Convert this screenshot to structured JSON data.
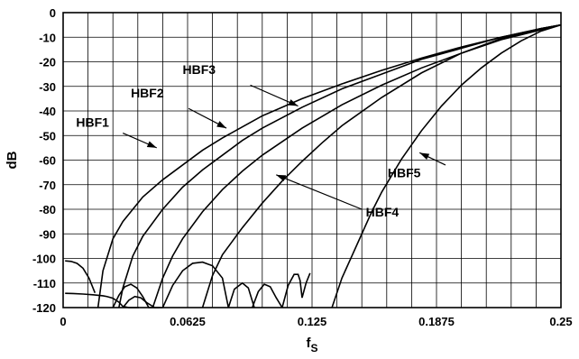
{
  "chart_data": {
    "type": "line",
    "title": "",
    "xlabel": "f",
    "xlabel_sub": "S",
    "ylabel": "dB",
    "xlim": [
      0,
      0.25
    ],
    "ylim": [
      -120,
      0
    ],
    "xticks": [
      0,
      0.0625,
      0.125,
      0.1875,
      0.25
    ],
    "xtick_labels": [
      "0",
      "0.0625",
      "0.125",
      "0.1875",
      "0.25"
    ],
    "yticks": [
      0,
      -10,
      -20,
      -30,
      -40,
      -50,
      -60,
      -70,
      -80,
      -90,
      -100,
      -110,
      -120
    ],
    "ytick_labels": [
      "0",
      "-10",
      "-20",
      "-30",
      "-40",
      "-50",
      "-60",
      "-70",
      "-80",
      "-90",
      "-100",
      "-110",
      "-120"
    ],
    "grid": true,
    "series": [
      {
        "name": "HBF1",
        "x": [
          0.0175,
          0.02,
          0.025,
          0.03,
          0.04,
          0.05,
          0.06,
          0.07,
          0.08,
          0.09,
          0.1,
          0.12,
          0.14,
          0.16,
          0.18,
          0.2,
          0.22,
          0.24,
          0.25
        ],
        "y": [
          -120,
          -105,
          -92,
          -85,
          -75,
          -68,
          -62,
          -56,
          -51,
          -46.5,
          -42,
          -35,
          -29,
          -23.5,
          -18.5,
          -14,
          -10,
          -6.5,
          -5
        ]
      },
      {
        "name": "HBF2",
        "x": [
          0.028,
          0.03,
          0.035,
          0.04,
          0.05,
          0.06,
          0.07,
          0.08,
          0.09,
          0.1,
          0.12,
          0.14,
          0.16,
          0.18,
          0.2,
          0.22,
          0.24,
          0.25
        ],
        "y": [
          -120,
          -112,
          -99,
          -91,
          -80,
          -71,
          -64,
          -58,
          -52,
          -47,
          -38.5,
          -31,
          -25,
          -19,
          -14.5,
          -10,
          -6.5,
          -5
        ]
      },
      {
        "name": "HBF3",
        "x": [
          0.045,
          0.05,
          0.055,
          0.06,
          0.07,
          0.08,
          0.09,
          0.1,
          0.12,
          0.14,
          0.16,
          0.18,
          0.2,
          0.22,
          0.24,
          0.25
        ],
        "y": [
          -120,
          -108,
          -99,
          -92,
          -81,
          -72,
          -64.5,
          -58,
          -47,
          -37.5,
          -29.5,
          -22.5,
          -16.5,
          -11,
          -7,
          -5
        ]
      },
      {
        "name": "HBF4",
        "x": [
          0.07,
          0.075,
          0.08,
          0.09,
          0.1,
          0.11,
          0.12,
          0.13,
          0.14,
          0.16,
          0.18,
          0.2,
          0.22,
          0.24,
          0.25
        ],
        "y": [
          -120,
          -107,
          -98.5,
          -87.5,
          -77.5,
          -68.5,
          -60.5,
          -53,
          -46,
          -34.5,
          -24.5,
          -16.5,
          -10.5,
          -6.5,
          -5
        ]
      },
      {
        "name": "HBF5",
        "x": [
          0.135,
          0.14,
          0.145,
          0.15,
          0.155,
          0.16,
          0.17,
          0.18,
          0.19,
          0.2,
          0.21,
          0.22,
          0.23,
          0.24,
          0.25
        ],
        "y": [
          -120,
          -108,
          -99,
          -90,
          -81,
          -73,
          -59.5,
          -48,
          -38,
          -29.5,
          -22.5,
          -16.5,
          -11.5,
          -7.5,
          -5
        ]
      },
      {
        "name": "",
        "x": [
          0.001,
          0.004,
          0.007,
          0.01,
          0.013,
          0.016
        ],
        "y": [
          -101,
          -101.2,
          -102,
          -104,
          -108,
          -114
        ]
      },
      {
        "name": "",
        "x": [
          0.001,
          0.005,
          0.01,
          0.015,
          0.02,
          0.022,
          0.025,
          0.028,
          0.03,
          0.033,
          0.036,
          0.038
        ],
        "y": [
          -114.2,
          -114.3,
          -114.5,
          -114.8,
          -115.2,
          -115.5,
          -116.2,
          -117.8,
          -119.5,
          -120,
          -120,
          -120
        ]
      },
      {
        "name": "",
        "x": [
          0.025,
          0.028,
          0.031,
          0.034,
          0.037,
          0.04,
          0.043,
          0.046,
          0.048
        ],
        "y": [
          -120,
          -115,
          -111.5,
          -110.5,
          -112,
          -115.5,
          -120,
          -120,
          -120
        ]
      },
      {
        "name": "",
        "x": [
          0.03,
          0.033,
          0.036,
          0.039,
          0.042,
          0.046,
          0.05
        ],
        "y": [
          -120,
          -117,
          -115.5,
          -116,
          -118,
          -120,
          -120
        ]
      },
      {
        "name": "",
        "x": [
          0.05,
          0.055,
          0.06,
          0.065,
          0.07,
          0.075,
          0.08,
          0.083
        ],
        "y": [
          -120,
          -111,
          -105,
          -102,
          -101.5,
          -103,
          -108,
          -120
        ]
      },
      {
        "name": "",
        "x": [
          0.083,
          0.086,
          0.09,
          0.093,
          0.096
        ],
        "y": [
          -120,
          -112.5,
          -110,
          -112,
          -120
        ]
      },
      {
        "name": "",
        "x": [
          0.095,
          0.098,
          0.101,
          0.104,
          0.107,
          0.11
        ],
        "y": [
          -120,
          -113.5,
          -110.5,
          -111.5,
          -116,
          -120
        ]
      },
      {
        "name": "",
        "x": [
          0.11,
          0.113,
          0.116,
          0.118,
          0.119,
          0.12,
          0.122,
          0.124
        ],
        "y": [
          -120,
          -111,
          -106.5,
          -106.5,
          -109,
          -116,
          -110,
          -106
        ]
      }
    ],
    "annotations": [
      {
        "text": "HBF1",
        "label_x": 0.0065,
        "label_y": -46.5,
        "arrow_x": 0.047,
        "arrow_y": -55,
        "arrow_from_x": 0.03,
        "arrow_from_y": -49
      },
      {
        "text": "HBF2",
        "label_x": 0.034,
        "label_y": -34.5,
        "arrow_x": 0.082,
        "arrow_y": -47,
        "arrow_from_x": 0.063,
        "arrow_from_y": -39
      },
      {
        "text": "HBF3",
        "label_x": 0.06,
        "label_y": -25,
        "arrow_x": 0.118,
        "arrow_y": -38,
        "arrow_from_x": 0.094,
        "arrow_from_y": -29.5
      },
      {
        "text": "HBF4",
        "label_x": 0.152,
        "label_y": -83,
        "arrow_x": 0.107,
        "arrow_y": -66,
        "arrow_from_x": 0.15,
        "arrow_from_y": -80
      },
      {
        "text": "HBF5",
        "label_x": 0.163,
        "label_y": -67,
        "arrow_x": 0.179,
        "arrow_y": -57,
        "arrow_from_x": 0.192,
        "arrow_from_y": -62
      }
    ],
    "legend": "none"
  }
}
